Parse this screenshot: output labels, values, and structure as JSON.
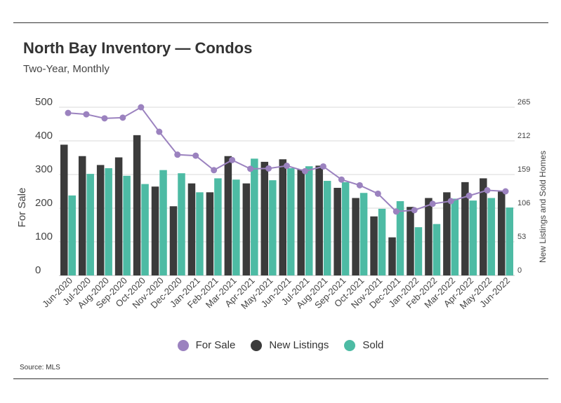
{
  "header": {
    "title": "North Bay Inventory — Condos",
    "subtitle": "Two-Year, Monthly"
  },
  "source": "Source: MLS",
  "colors": {
    "for_sale": "#9b82bf",
    "new_listings": "#3b3b3b",
    "sold": "#4dbba4",
    "grid": "#d9d9d9"
  },
  "chart_data": {
    "type": "bar",
    "categories": [
      "Jun-2020",
      "Jul-2020",
      "Aug-2020",
      "Sep-2020",
      "Oct-2020",
      "Nov-2020",
      "Dec-2020",
      "Jan-2021",
      "Feb-2021",
      "Mar-2021",
      "Apr-2021",
      "May-2021",
      "Jun-2021",
      "Jul-2021",
      "Aug-2021",
      "Sep-2021",
      "Oct-2021",
      "Nov-2021",
      "Dec-2021",
      "Jan-2022",
      "Feb-2022",
      "Mar-2022",
      "Apr-2022",
      "May-2022",
      "Jun-2022"
    ],
    "ylabel": "For Sale",
    "y2label": "New Listings and Sold Homes",
    "ylim": [
      0,
      500
    ],
    "y2lim": [
      0,
      265
    ],
    "yticks": [
      "0",
      "100",
      "200",
      "300",
      "400",
      "500"
    ],
    "y2ticks": [
      "0",
      "53",
      "106",
      "159",
      "212",
      "265"
    ],
    "legend_position": "bottom",
    "grid": true,
    "series": [
      {
        "name": "For Sale",
        "type": "line",
        "axis": "left",
        "values": [
          483,
          479,
          467,
          469,
          500,
          427,
          359,
          356,
          313,
          343,
          317,
          318,
          326,
          310,
          324,
          285,
          268,
          243,
          190,
          194,
          213,
          221,
          237,
          253,
          250
        ]
      },
      {
        "name": "New Listings",
        "type": "bar",
        "axis": "right",
        "values": [
          206,
          188,
          174,
          186,
          221,
          140,
          109,
          145,
          131,
          188,
          145,
          179,
          183,
          167,
          173,
          138,
          122,
          93,
          60,
          108,
          122,
          131,
          147,
          153,
          132
        ]
      },
      {
        "name": "Sold",
        "type": "bar",
        "axis": "right",
        "values": [
          126,
          160,
          169,
          157,
          144,
          166,
          161,
          131,
          153,
          151,
          184,
          150,
          169,
          172,
          149,
          147,
          130,
          105,
          117,
          76,
          81,
          121,
          118,
          122,
          107
        ]
      }
    ]
  }
}
